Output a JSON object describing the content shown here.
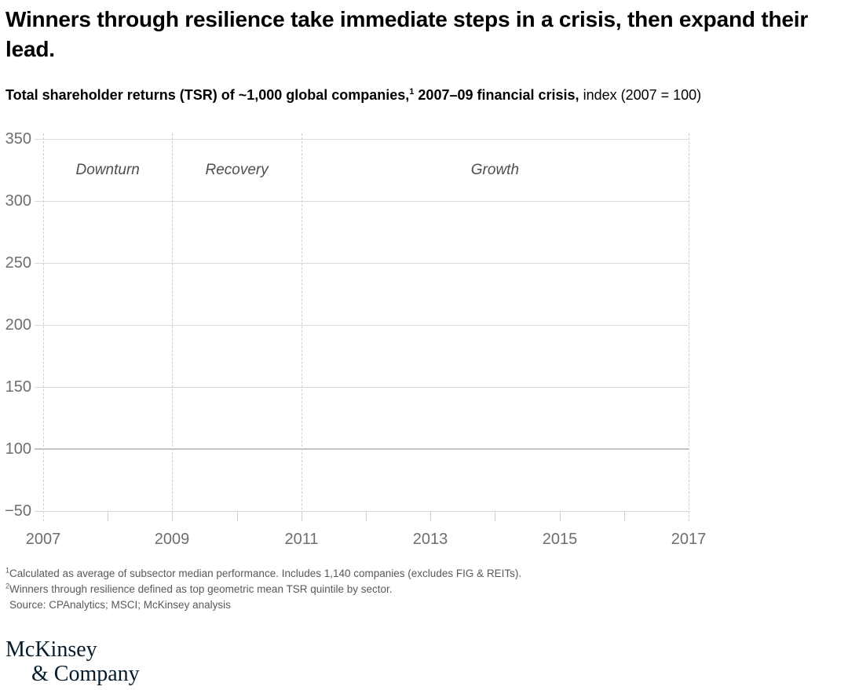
{
  "header": {
    "title": "Winners through resilience take immediate steps in a crisis, then expand their lead.",
    "subtitle": {
      "bold_before_sup": "Total shareholder returns (TSR) of ~1,000 global companies,",
      "superscript": "1",
      "bold_after_sup": " 2007–09 financial crisis,",
      "regular": " index (2007 = 100)"
    }
  },
  "chart_data": {
    "type": "line",
    "title": "Total shareholder returns (TSR) of ~1,000 global companies, 2007–09 financial crisis, index (2007 = 100)",
    "y_axis": {
      "tick_labels": [
        "350",
        "300",
        "250",
        "200",
        "150",
        "100",
        "−50"
      ],
      "values_top_to_bottom": [
        350,
        300,
        250,
        200,
        150,
        100,
        -50
      ],
      "baseline_value": 100
    },
    "x_axis": {
      "range": [
        2007,
        2017
      ],
      "labeled_ticks": [
        2007,
        2009,
        2011,
        2013,
        2015,
        2017
      ],
      "minor_tick_years": [
        2008,
        2009,
        2010,
        2011,
        2012,
        2013,
        2014,
        2015,
        2016
      ]
    },
    "phases": [
      {
        "label": "Downturn",
        "start": 2007,
        "end": 2009
      },
      {
        "label": "Recovery",
        "start": 2009,
        "end": 2011
      },
      {
        "label": "Growth",
        "start": 2011,
        "end": 2017
      }
    ],
    "phase_boundary_years": [
      2007,
      2009,
      2011,
      2017
    ],
    "series": [],
    "grid": "horizontal-on",
    "legend": "none"
  },
  "footnotes": [
    {
      "superscript": "1",
      "text": "Calculated as average of subsector median performance. Includes 1,140 companies (excludes FIG & REITs)."
    },
    {
      "superscript": "2",
      "text": "Winners through resilience defined as top geometric mean TSR quintile by sector."
    }
  ],
  "source": "Source: CPAnalytics; MSCI; McKinsey analysis",
  "logo": {
    "line1": "McKinsey",
    "line2": "& Company"
  },
  "colors": {
    "background": "#ffffff",
    "title_text": "#000000",
    "axis_label": "#6e6e6e",
    "phase_label": "#4f4f4f",
    "gridline": "#d9d9d9",
    "baseline_gridline": "#c3c3c3",
    "dashed_line": "#cfcfcf",
    "footnote_text": "#595959",
    "logo_navy": "#051c2c"
  }
}
